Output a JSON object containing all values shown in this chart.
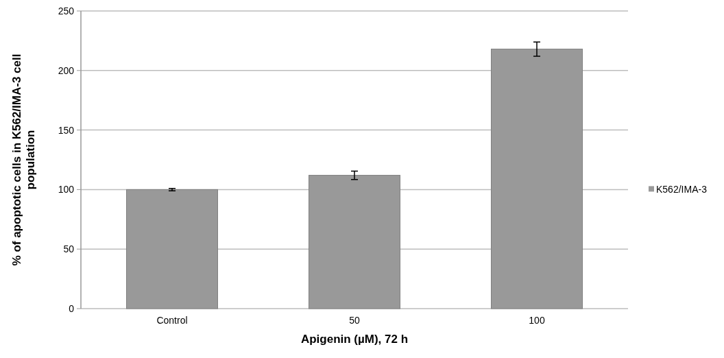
{
  "chart_data": {
    "type": "bar",
    "xlabel": "Apigenin (µM), 72 h",
    "ylabel": "% of apoptotic cells in K562/IMA-3 cell population",
    "categories": [
      "Control",
      "50",
      "100"
    ],
    "series": [
      {
        "name": "K562/IMA-3",
        "color": "#999999",
        "values": [
          100,
          112,
          218
        ],
        "errors": [
          1,
          3.5,
          6
        ]
      }
    ],
    "ylim": [
      0,
      250
    ],
    "yticks": [
      0,
      50,
      100,
      150,
      200,
      250
    ],
    "grid": "y",
    "legend": "right"
  }
}
